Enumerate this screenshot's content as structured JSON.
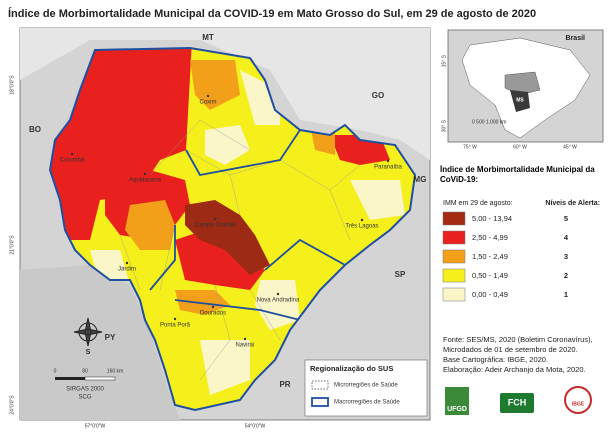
{
  "title": "Índice de Morbimortalidade Municipal da COVID-19 em Mato Grosso do Sul, em 29 de agosto de 2020",
  "map": {
    "neighbors": [
      "MT",
      "GO",
      "MG",
      "SP",
      "PR",
      "BO",
      "PY"
    ],
    "places": [
      "Corumbá",
      "Coxim",
      "Paranaíba",
      "Aquidauana",
      "Campo Grande",
      "Três Lagoas",
      "Jardim",
      "Dourados",
      "Ponta Porã",
      "Nova Andradina",
      "Naviraí"
    ],
    "longitudes": [
      "57°0'0\"W",
      "54°0'0\"W"
    ],
    "latitudes": [
      "18°0'0\"S",
      "21°0'0\"S",
      "24°0'0\"S"
    ],
    "scale": {
      "marks": [
        "0",
        "80",
        "160 km"
      ],
      "datum": "SIRGAS 2000",
      "system": "SCG"
    },
    "north": "S",
    "sus": {
      "title": "Regionalização do SUS",
      "micro": "Microrregiões de Saúde",
      "macro": "Macrorregiões de Saúde"
    }
  },
  "inset": {
    "country": "Brasil",
    "state": "MS",
    "scale": "0 500 1.000 km",
    "latitudes": [
      "15° S",
      "30° S"
    ],
    "longitudes": [
      "75° W",
      "60° W",
      "45° W"
    ]
  },
  "legend": {
    "title": "Índice de Morbimortalidade Municipal da CoViD-19:",
    "subtitle": "IMM em 29 de agosto:",
    "levels_title": "Níveis de Alerta:",
    "items": [
      {
        "range": "5,00 - 13,94",
        "level": 5,
        "color": "#a52a12"
      },
      {
        "range": "2,50 - 4,99",
        "level": 4,
        "color": "#e8201e"
      },
      {
        "range": "1,50 - 2,49",
        "level": 3,
        "color": "#f2a019"
      },
      {
        "range": "0,50 - 1,49",
        "level": 2,
        "color": "#f5f01c"
      },
      {
        "range": "0,00 - 0,49",
        "level": 1,
        "color": "#faf6c8"
      }
    ]
  },
  "sources": [
    "Fonte: SES/MS, 2020 (Boletim Coronavírus),",
    "Microdados de 01 de setembro de 2020.",
    "Base Cartográfica: IBGE, 2020.",
    "Elaboração: Adeir Archanjo da Mota, 2020."
  ],
  "logos": [
    "UFGD",
    "FCH",
    "IBGE"
  ]
}
